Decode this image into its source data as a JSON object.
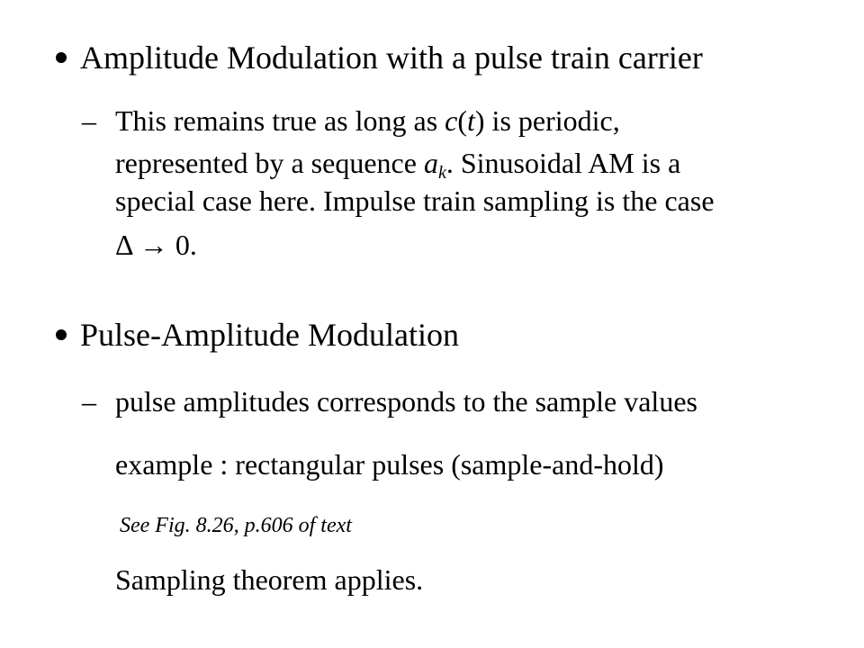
{
  "section1": {
    "heading": "Amplitude Modulation with a pulse train carrier",
    "dash": "–",
    "line1_a": "This remains true as long as ",
    "line1_c": "c",
    "line1_paren_open": "(",
    "line1_t": "t",
    "line1_b": ") is periodic,",
    "line2_a": "represented by a sequence ",
    "line2_var": "a",
    "line2_sub": "k",
    "line2_b": ". Sinusoidal AM is a",
    "line3": "special case here. Impulse train sampling is the case",
    "line4": "Δ → 0."
  },
  "section2": {
    "heading": "Pulse-Amplitude Modulation",
    "dash": "–",
    "line1": "pulse amplitudes corresponds to the sample values",
    "line2": "example : rectangular pulses (sample-and-hold)",
    "note": "See Fig. 8.26, p.606 of text",
    "line3": "Sampling theorem applies."
  }
}
